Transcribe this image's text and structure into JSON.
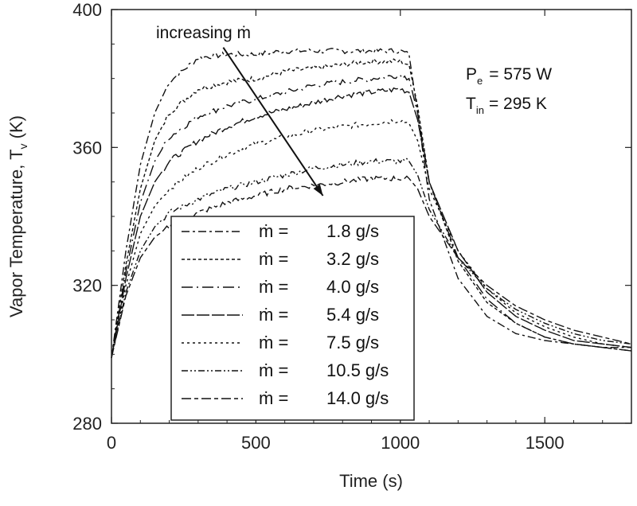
{
  "chart_data": {
    "type": "line",
    "xlabel": "Time (s)",
    "ylabel_main": "Vapor Temperature, T",
    "ylabel_sub": "v",
    "ylabel_unit": "(K)",
    "xlim": [
      0,
      1800
    ],
    "ylim": [
      280,
      400
    ],
    "xticks": [
      0,
      500,
      1000,
      1500
    ],
    "yticks": [
      280,
      320,
      360,
      400
    ],
    "xtick_labels": [
      "0",
      "500",
      "1000",
      "1500"
    ],
    "ytick_labels": [
      "280",
      "320",
      "360",
      "400"
    ],
    "grid": false,
    "legend_placement": "bottom-center",
    "color": "#111111",
    "x": [
      0,
      50,
      100,
      150,
      200,
      300,
      400,
      500,
      600,
      700,
      800,
      900,
      1000,
      1030,
      1060,
      1100,
      1200,
      1300,
      1400,
      1500,
      1600,
      1700,
      1800
    ],
    "series": [
      {
        "name": "1.8 g/s",
        "dash": "10 4 3 4",
        "values": [
          299,
          330,
          355,
          370,
          379,
          386,
          387,
          387,
          388,
          388,
          388,
          388,
          388,
          387,
          370,
          345,
          322,
          311,
          306,
          304,
          303,
          302,
          302
        ]
      },
      {
        "name": "3.2 g/s",
        "dash": "4 3",
        "values": [
          299,
          326,
          348,
          362,
          370,
          377,
          379,
          380,
          382,
          383,
          384,
          385,
          385,
          384,
          372,
          350,
          327,
          315,
          309,
          305,
          303,
          302,
          301
        ]
      },
      {
        "name": "4.0 g/s",
        "dash": "14 5 2 5",
        "values": [
          299,
          324,
          344,
          356,
          363,
          369,
          372,
          374,
          376,
          378,
          379,
          380,
          381,
          380,
          370,
          350,
          328,
          316,
          309,
          305,
          303,
          302,
          301
        ]
      },
      {
        "name": "5.4 g/s",
        "dash": "16 3",
        "values": [
          299,
          322,
          340,
          350,
          356,
          362,
          366,
          369,
          371,
          373,
          375,
          376,
          377,
          376,
          368,
          350,
          330,
          318,
          311,
          307,
          304,
          303,
          302
        ]
      },
      {
        "name": "7.5 g/s",
        "dash": "3 4",
        "values": [
          299,
          320,
          335,
          343,
          348,
          354,
          358,
          361,
          363,
          365,
          366,
          367,
          368,
          367,
          362,
          348,
          330,
          319,
          312,
          308,
          305,
          303,
          302
        ]
      },
      {
        "name": "10.5 g/s",
        "dash": "8 3 2 3 2 3",
        "values": [
          299,
          318,
          330,
          337,
          341,
          345,
          348,
          350,
          352,
          354,
          355,
          356,
          356,
          356,
          352,
          342,
          328,
          319,
          313,
          309,
          306,
          304,
          303
        ]
      },
      {
        "name": "14.0 g/s",
        "dash": "12 4 5 4",
        "values": [
          299,
          317,
          328,
          334,
          337,
          341,
          344,
          346,
          348,
          349,
          350,
          351,
          351,
          351,
          348,
          340,
          328,
          320,
          314,
          310,
          307,
          305,
          303
        ]
      }
    ],
    "legend_prefix": "ṁ =",
    "annotations": {
      "arrow_text": "increasing ṁ",
      "arrow_from": [
        387,
        389
      ],
      "arrow_to": [
        732,
        346
      ],
      "power_label": "P",
      "power_sub": "e",
      "power_value": "= 575 W",
      "inlet_label": "T",
      "inlet_sub": "in",
      "inlet_value": "= 295 K"
    }
  }
}
